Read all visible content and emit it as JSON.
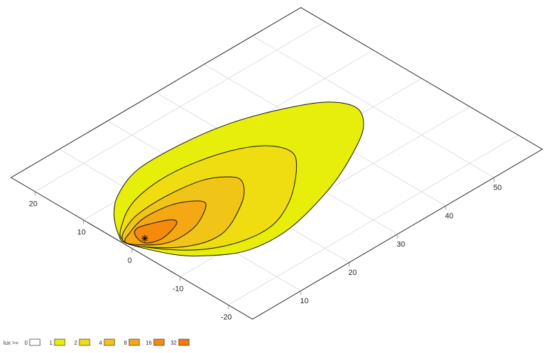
{
  "chart_data": {
    "type": "contour",
    "view": "3d-perspective-plane",
    "xlim": [
      0,
      60
    ],
    "ylim": [
      -25,
      25
    ],
    "x_ticks": [
      "10",
      "20",
      "30",
      "40",
      "50"
    ],
    "y_ticks": [
      "20",
      "10",
      "0",
      "-10",
      "-20"
    ],
    "grid": true,
    "legend": {
      "title": "lux >=",
      "placement": "bottom-left",
      "levels": [
        {
          "label": "0",
          "color": "#ffffff"
        },
        {
          "label": "1",
          "color": "#e6ee0a"
        },
        {
          "label": "2",
          "color": "#efdd12"
        },
        {
          "label": "4",
          "color": "#f1c517"
        },
        {
          "label": "8",
          "color": "#f3a814"
        },
        {
          "label": "16",
          "color": "#f68a0c"
        },
        {
          "label": "32",
          "color": "#f67a06"
        }
      ]
    },
    "contours": [
      {
        "level": 1,
        "color": "#e6ee0a",
        "points": [
          [
            0.4,
            1.2
          ],
          [
            3.2,
            -5.3
          ],
          [
            6.5,
            -9.1
          ],
          [
            11.8,
            -12.4
          ],
          [
            20.0,
            -12.8
          ],
          [
            31.6,
            -9.7
          ],
          [
            40.8,
            -5.5
          ],
          [
            45.9,
            -2.1
          ],
          [
            48.1,
            1.8
          ],
          [
            45.7,
            5.9
          ],
          [
            39.3,
            9.4
          ],
          [
            31.8,
            12.0
          ],
          [
            23.2,
            13.3
          ],
          [
            14.6,
            13.3
          ],
          [
            8.3,
            11.0
          ],
          [
            4.2,
            7.9
          ],
          [
            1.0,
            3.7
          ]
        ]
      },
      {
        "level": 2,
        "color": "#efdd12",
        "points": [
          [
            0.5,
            1.8
          ],
          [
            4.6,
            -5.2
          ],
          [
            10.5,
            -9.4
          ],
          [
            17.8,
            -10.6
          ],
          [
            24.8,
            -7.9
          ],
          [
            31.6,
            -2.5
          ],
          [
            33.6,
            0.9
          ],
          [
            31.6,
            4.6
          ],
          [
            26.0,
            7.5
          ],
          [
            17.6,
            9.1
          ],
          [
            9.7,
            8.4
          ],
          [
            3.9,
            5.7
          ]
        ]
      },
      {
        "level": 4,
        "color": "#f1c517",
        "points": [
          [
            0.3,
            1.6
          ],
          [
            5.1,
            -4.7
          ],
          [
            11.6,
            -6.8
          ],
          [
            19.2,
            -3.5
          ],
          [
            23.0,
            0.0
          ],
          [
            22.9,
            2.3
          ],
          [
            19.0,
            4.8
          ],
          [
            11.3,
            5.7
          ],
          [
            4.7,
            4.9
          ]
        ]
      },
      {
        "level": 8,
        "color": "#f3a814",
        "points": [
          [
            0.4,
            1.4
          ],
          [
            4.4,
            -2.6
          ],
          [
            10.0,
            -2.8
          ],
          [
            14.9,
            -0.4
          ],
          [
            15.4,
            1.3
          ],
          [
            12.0,
            3.5
          ],
          [
            6.8,
            4.1
          ],
          [
            2.9,
            3.1
          ]
        ]
      },
      {
        "level": 16,
        "color": "#f68a0c",
        "points": [
          [
            2.7,
            2.0
          ],
          [
            2.3,
            -0.4
          ],
          [
            4.9,
            -1.4
          ],
          [
            8.8,
            -0.4
          ],
          [
            9.3,
            0.8
          ],
          [
            7.0,
            2.1
          ],
          [
            4.2,
            3.0
          ]
        ]
      }
    ],
    "marker": {
      "symbol": "asterisk",
      "x": 3.1,
      "y": 0.4
    }
  }
}
